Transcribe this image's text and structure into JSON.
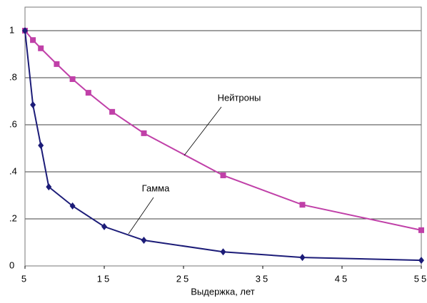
{
  "chart_data": {
    "type": "line",
    "x_label": "Выдержка, лет",
    "xlim": [
      5,
      55
    ],
    "xticks": [
      5,
      15,
      25,
      35,
      45,
      55
    ],
    "ylim": [
      0,
      1.1
    ],
    "yticks": [
      0,
      {
        "value": 0.2,
        "label": ".2"
      },
      {
        "value": 0.4,
        "label": ".4"
      },
      {
        "value": 0.6,
        "label": ".6"
      },
      {
        "value": 0.8,
        "label": ".8"
      },
      1
    ],
    "grid": true,
    "series": [
      {
        "name": "Нейтроны",
        "color": "#c040a8",
        "x": [
          5,
          6,
          7,
          9,
          11,
          13,
          16,
          20,
          30,
          40,
          55
        ],
        "values": [
          1.0,
          0.96,
          0.925,
          0.858,
          0.794,
          0.736,
          0.655,
          0.564,
          0.385,
          0.26,
          0.152
        ]
      },
      {
        "name": "Гамма",
        "color": "#1c1c78",
        "x": [
          5,
          6,
          7,
          8,
          11,
          15,
          20,
          30,
          40,
          55
        ],
        "values": [
          1.0,
          0.685,
          0.512,
          0.336,
          0.255,
          0.167,
          0.109,
          0.06,
          0.036,
          0.024
        ]
      }
    ]
  }
}
